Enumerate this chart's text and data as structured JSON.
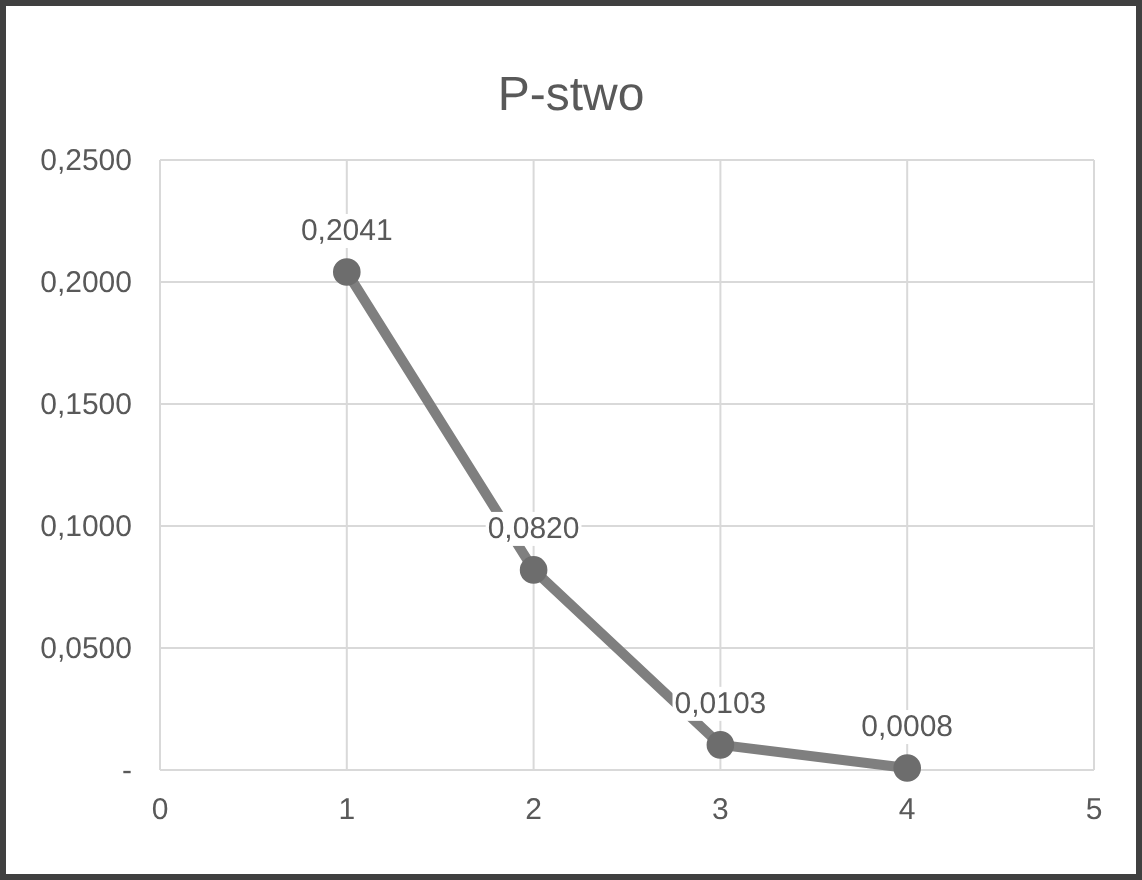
{
  "chart_data": {
    "type": "line",
    "title": "P-stwo",
    "x": [
      1,
      2,
      3,
      4
    ],
    "series": [
      {
        "color": "#7f7f7f",
        "values": [
          0.2041,
          0.082,
          0.0103,
          0.0008
        ],
        "value_labels": [
          "0,2041",
          "0,0820",
          "0,0103",
          "0,0008"
        ]
      }
    ],
    "xlim": [
      0,
      5
    ],
    "xticks": [
      0,
      1,
      2,
      3,
      4,
      5
    ],
    "ylim": [
      0,
      0.25
    ],
    "yticks": [
      {
        "value": 0,
        "label": "-"
      },
      {
        "value": 0.05,
        "label": "0,0500"
      },
      {
        "value": 0.1,
        "label": "0,1000"
      },
      {
        "value": 0.15,
        "label": "0,1500"
      },
      {
        "value": 0.2,
        "label": "0,2000"
      },
      {
        "value": 0.25,
        "label": "0,2500"
      }
    ],
    "grid": true,
    "marker": "circle",
    "line_style": "solid"
  }
}
